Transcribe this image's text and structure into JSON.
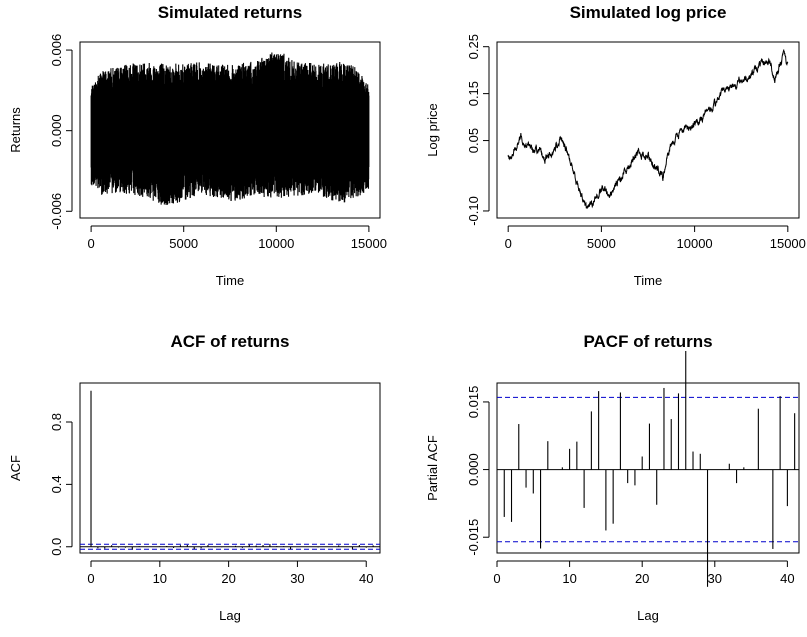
{
  "chart_data": [
    {
      "id": "p1",
      "type": "line",
      "title": "Simulated returns",
      "xlabel": "Time",
      "ylabel": "Returns",
      "xlim": [
        -600,
        15600
      ],
      "ylim": [
        -0.0065,
        0.0066
      ],
      "xticks": [
        0,
        5000,
        10000,
        15000
      ],
      "xtick_labels": [
        "0",
        "5000",
        "10000",
        "15000"
      ],
      "yticks": [
        -0.006,
        0.0,
        0.006
      ],
      "ytick_labels": [
        "-0.006",
        "0.000",
        "0.006"
      ],
      "n_points": 15000,
      "envelope_upper": [
        [
          0,
          0.0032
        ],
        [
          500,
          0.0045
        ],
        [
          1500,
          0.0048
        ],
        [
          3000,
          0.0052
        ],
        [
          4500,
          0.005
        ],
        [
          6000,
          0.0051
        ],
        [
          7500,
          0.0049
        ],
        [
          9000,
          0.0052
        ],
        [
          10000,
          0.0062
        ],
        [
          11000,
          0.0051
        ],
        [
          12500,
          0.005
        ],
        [
          14000,
          0.0052
        ],
        [
          15000,
          0.0034
        ]
      ],
      "envelope_lower": [
        [
          0,
          -0.004
        ],
        [
          500,
          -0.0048
        ],
        [
          1500,
          -0.0046
        ],
        [
          3000,
          -0.005
        ],
        [
          3900,
          -0.0058
        ],
        [
          5000,
          -0.0052
        ],
        [
          6000,
          -0.0047
        ],
        [
          7500,
          -0.0053
        ],
        [
          9000,
          -0.0049
        ],
        [
          10500,
          -0.0052
        ],
        [
          12000,
          -0.0046
        ],
        [
          13500,
          -0.0055
        ],
        [
          15000,
          -0.0045
        ]
      ],
      "color": "#000000",
      "grid": false
    },
    {
      "id": "p2",
      "type": "line",
      "title": "Simulated log price",
      "xlabel": "Time",
      "ylabel": "Log price",
      "xlim": [
        -600,
        15600
      ],
      "ylim": [
        -0.115,
        0.26
      ],
      "xticks": [
        0,
        5000,
        10000,
        15000
      ],
      "xtick_labels": [
        "0",
        "5000",
        "10000",
        "15000"
      ],
      "yticks": [
        -0.1,
        0.05,
        0.15,
        0.25
      ],
      "ytick_labels": [
        "-0.10",
        "0.05",
        "0.15",
        "0.25"
      ],
      "anchors": [
        [
          0,
          0.015
        ],
        [
          300,
          0.025
        ],
        [
          700,
          0.06
        ],
        [
          1000,
          0.04
        ],
        [
          1500,
          0.03
        ],
        [
          2000,
          0.01
        ],
        [
          2300,
          0.02
        ],
        [
          2800,
          0.055
        ],
        [
          3200,
          0.02
        ],
        [
          3700,
          -0.04
        ],
        [
          4200,
          -0.09
        ],
        [
          4500,
          -0.085
        ],
        [
          5000,
          -0.05
        ],
        [
          5400,
          -0.07
        ],
        [
          6000,
          -0.03
        ],
        [
          6500,
          0.0
        ],
        [
          7000,
          0.025
        ],
        [
          7500,
          0.02
        ],
        [
          8000,
          -0.01
        ],
        [
          8300,
          -0.03
        ],
        [
          8700,
          0.04
        ],
        [
          9300,
          0.075
        ],
        [
          9800,
          0.08
        ],
        [
          10300,
          0.09
        ],
        [
          10700,
          0.12
        ],
        [
          11000,
          0.115
        ],
        [
          11500,
          0.16
        ],
        [
          12200,
          0.17
        ],
        [
          13000,
          0.19
        ],
        [
          13500,
          0.21
        ],
        [
          14000,
          0.22
        ],
        [
          14300,
          0.18
        ],
        [
          14800,
          0.24
        ],
        [
          15000,
          0.21
        ]
      ],
      "color": "#000000",
      "grid": false
    },
    {
      "id": "p3",
      "type": "bar",
      "title": "ACF of returns",
      "xlabel": "Lag",
      "ylabel": "ACF",
      "xlim": [
        -1.6,
        42.0
      ],
      "ylim": [
        -0.04,
        1.05
      ],
      "xticks": [
        0,
        10,
        20,
        30,
        40
      ],
      "xtick_labels": [
        "0",
        "10",
        "20",
        "30",
        "40"
      ],
      "yticks": [
        0.0,
        0.4,
        0.8
      ],
      "ytick_labels": [
        "0.0",
        "0.4",
        "0.8"
      ],
      "lags": [
        0,
        1,
        2,
        3,
        4,
        5,
        6,
        7,
        8,
        9,
        10,
        11,
        12,
        13,
        14,
        15,
        16,
        17,
        18,
        19,
        20,
        21,
        22,
        23,
        24,
        25,
        26,
        27,
        28,
        29,
        30,
        31,
        32,
        33,
        34,
        35,
        36,
        37,
        38,
        39,
        40,
        41
      ],
      "values": [
        1.0,
        -0.01,
        -0.012,
        0.01,
        -0.005,
        -0.006,
        -0.018,
        0.004,
        0.0,
        0.001,
        0.003,
        0.005,
        -0.008,
        0.01,
        0.012,
        -0.015,
        -0.01,
        0.011,
        -0.003,
        -0.003,
        0.002,
        0.006,
        -0.007,
        0.013,
        0.008,
        0.011,
        0.018,
        0.004,
        0.004,
        -0.017,
        0.0,
        0.0,
        0.001,
        -0.004,
        0.0,
        0.0,
        0.009,
        0.0,
        -0.016,
        0.011,
        -0.006,
        0.009
      ],
      "conf_bound": 0.016,
      "ci_color": "#0000cc",
      "grid": false
    },
    {
      "id": "p4",
      "type": "bar",
      "title": "PACF of returns",
      "xlabel": "Lag",
      "ylabel": "Partial ACF",
      "xlim": [
        0.0,
        41.6
      ],
      "ylim": [
        -0.0185,
        0.0192
      ],
      "xticks": [
        0,
        10,
        20,
        30,
        40
      ],
      "xtick_labels": [
        "0",
        "10",
        "20",
        "30",
        "40"
      ],
      "yticks": [
        -0.015,
        0.0,
        0.015
      ],
      "ytick_labels": [
        "-0.015",
        "0.000",
        "0.015"
      ],
      "lags": [
        1,
        2,
        3,
        4,
        5,
        6,
        7,
        8,
        9,
        10,
        11,
        12,
        13,
        14,
        15,
        16,
        17,
        18,
        19,
        20,
        21,
        22,
        23,
        24,
        25,
        26,
        27,
        28,
        29,
        30,
        31,
        32,
        33,
        34,
        35,
        36,
        37,
        38,
        39,
        40,
        41
      ],
      "values": [
        -0.0105,
        -0.0116,
        0.0101,
        -0.004,
        -0.0053,
        -0.0175,
        0.0063,
        0.0,
        0.0005,
        0.0046,
        0.0062,
        -0.0085,
        0.0129,
        0.0174,
        -0.0135,
        -0.012,
        0.0171,
        -0.003,
        -0.0035,
        0.0029,
        0.0102,
        -0.0078,
        0.0181,
        0.0112,
        0.0169,
        0.0263,
        0.004,
        0.0035,
        -0.026,
        0.0,
        -0.0001,
        0.0013,
        -0.003,
        0.0005,
        0.0,
        0.0135,
        0.0,
        -0.0176,
        0.0163,
        -0.0081,
        0.0125
      ],
      "conf_bound": 0.016,
      "ci_color": "#0000cc",
      "grid": false
    }
  ]
}
